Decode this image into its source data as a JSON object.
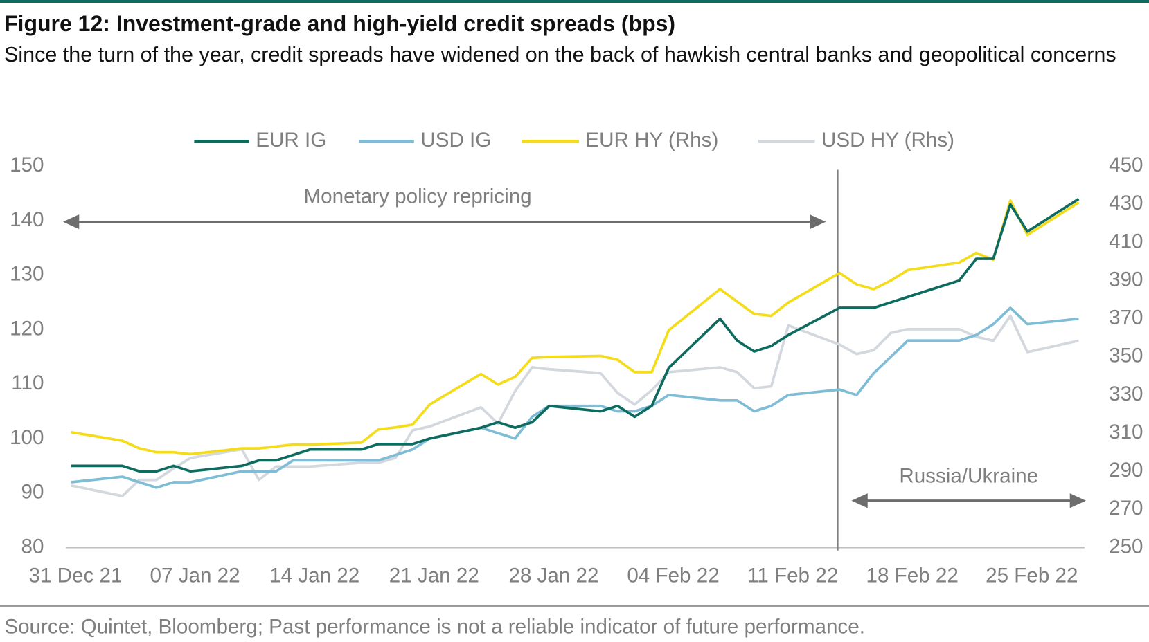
{
  "chart_data": {
    "type": "line",
    "title": "Figure 12: Investment-grade and high-yield credit spreads (bps)",
    "subtitle": "Since the turn of the year, credit spreads have widened on the back of hawkish central banks and geopolitical concerns",
    "source": "Source: Quintet, Bloomberg; Past performance is not a reliable indicator of future performance.",
    "annotations": [
      "Monetary policy repricing",
      "Russia/Ukraine"
    ],
    "x": [
      "2021-12-31",
      "2022-01-03",
      "2022-01-04",
      "2022-01-05",
      "2022-01-06",
      "2022-01-07",
      "2022-01-10",
      "2022-01-11",
      "2022-01-12",
      "2022-01-13",
      "2022-01-14",
      "2022-01-17",
      "2022-01-18",
      "2022-01-19",
      "2022-01-20",
      "2022-01-21",
      "2022-01-24",
      "2022-01-25",
      "2022-01-26",
      "2022-01-27",
      "2022-01-28",
      "2022-01-31",
      "2022-02-01",
      "2022-02-02",
      "2022-02-03",
      "2022-02-04",
      "2022-02-07",
      "2022-02-08",
      "2022-02-09",
      "2022-02-10",
      "2022-02-11",
      "2022-02-14",
      "2022-02-15",
      "2022-02-16",
      "2022-02-17",
      "2022-02-18",
      "2022-02-21",
      "2022-02-22",
      "2022-02-23",
      "2022-02-24",
      "2022-02-25",
      "2022-02-28"
    ],
    "xlim": [
      "2021-12-31",
      "2022-02-28"
    ],
    "xticks": [
      {
        "value": "2021-12-31",
        "label": "31 Dec 21"
      },
      {
        "value": "2022-01-07",
        "label": "07 Jan 22"
      },
      {
        "value": "2022-01-14",
        "label": "14 Jan 22"
      },
      {
        "value": "2022-01-21",
        "label": "21 Jan 22"
      },
      {
        "value": "2022-01-28",
        "label": "28 Jan 22"
      },
      {
        "value": "2022-02-04",
        "label": "04 Feb 22"
      },
      {
        "value": "2022-02-11",
        "label": "11 Feb 22"
      },
      {
        "value": "2022-02-18",
        "label": "18 Feb 22"
      },
      {
        "value": "2022-02-25",
        "label": "25 Feb 22"
      }
    ],
    "ylim": [
      80,
      150
    ],
    "yticks": [
      80,
      90,
      100,
      110,
      120,
      130,
      140,
      150
    ],
    "y2lim": [
      250,
      450
    ],
    "y2ticks": [
      250,
      270,
      290,
      310,
      330,
      350,
      370,
      390,
      410,
      430,
      450
    ],
    "legend": "top",
    "grid": false,
    "series": [
      {
        "name": "EUR IG",
        "color": "#0d6b5f",
        "values": [
          95,
          95,
          94,
          94,
          95,
          94,
          95,
          96,
          96,
          97,
          98,
          98,
          99,
          99,
          99,
          100,
          102,
          103,
          102,
          103,
          106,
          105,
          106,
          104,
          106,
          113,
          122,
          118,
          116,
          117,
          119,
          124,
          124,
          124,
          125,
          126,
          129,
          133,
          133,
          143,
          138,
          144
        ]
      },
      {
        "name": "USD IG",
        "color": "#7fbcd6",
        "values": [
          92,
          93,
          92,
          91,
          92,
          92,
          94,
          94,
          94,
          96,
          96,
          96,
          96,
          97,
          98,
          100,
          102,
          101,
          100,
          104,
          106,
          106,
          105,
          105,
          106,
          108,
          107,
          107,
          105,
          106,
          108,
          109,
          108,
          112,
          115,
          118,
          118,
          119,
          121,
          124,
          121,
          122
        ]
      },
      {
        "name": "EUR HY (Rhs)",
        "color": "#f5dc1a",
        "axis": "y2",
        "values": [
          310.5,
          306,
          302,
          300,
          300,
          299,
          302,
          302,
          303,
          304,
          304,
          305,
          312,
          313,
          314.5,
          325,
          341,
          335.5,
          339.5,
          349.5,
          350,
          350.5,
          348.5,
          342,
          342,
          364,
          385.5,
          379,
          372.5,
          371.5,
          378.5,
          394,
          388,
          385.5,
          390,
          395.5,
          399.5,
          404.5,
          401,
          432,
          414,
          431
        ]
      },
      {
        "name": "USD HY (Rhs)",
        "color": "#d3d8de",
        "axis": "y2",
        "values": [
          282.5,
          277,
          285.5,
          285.5,
          291.5,
          297,
          301.5,
          285.5,
          292.5,
          292.5,
          292.5,
          294.5,
          294.5,
          297,
          311.5,
          313.5,
          323.5,
          315,
          332,
          344.5,
          343.5,
          341.5,
          331,
          325,
          332.5,
          342,
          344.5,
          342,
          333.5,
          334.5,
          366.5,
          356.5,
          351.5,
          353.5,
          362.5,
          364.5,
          364.5,
          360.5,
          358.5,
          371.5,
          352.5,
          358.5
        ]
      }
    ]
  }
}
